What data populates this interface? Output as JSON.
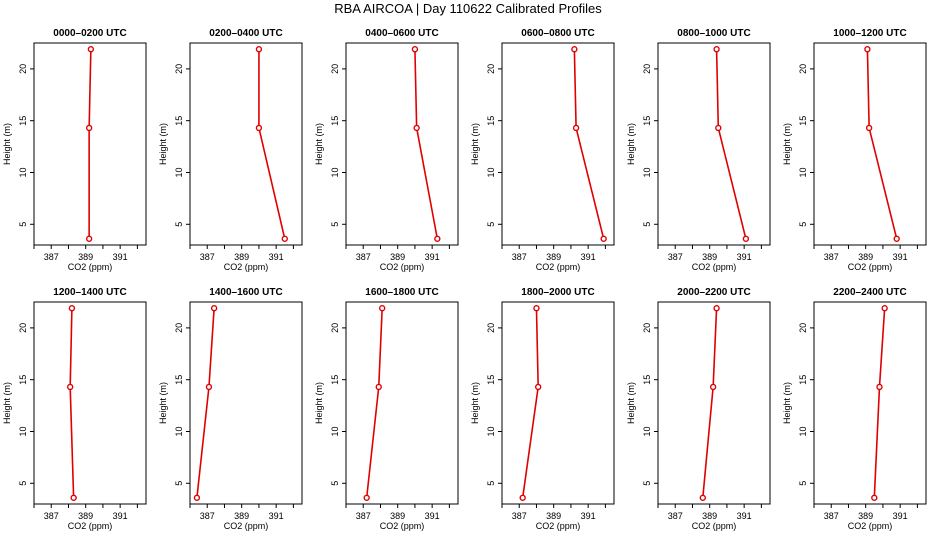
{
  "chart_data": {
    "type": "line",
    "title": "RBA AIRCOA |  Day 110622  Calibrated Profiles",
    "xlabel": "CO2 (ppm)",
    "ylabel": "Height (m)",
    "xlim": [
      386,
      392.5
    ],
    "ylim": [
      3,
      22.5
    ],
    "xticks": [
      387,
      389,
      391
    ],
    "yticks": [
      5,
      10,
      15,
      20
    ],
    "heights": [
      3.6,
      14.3,
      21.9
    ],
    "line_color": "#e00000",
    "panels": [
      {
        "title": "0000–0200 UTC",
        "co2": [
          389.2,
          389.2,
          389.3
        ]
      },
      {
        "title": "0200–0400 UTC",
        "co2": [
          391.5,
          390.0,
          390.0
        ]
      },
      {
        "title": "0400–0600 UTC",
        "co2": [
          391.3,
          390.1,
          390.0
        ]
      },
      {
        "title": "0600–0800 UTC",
        "co2": [
          391.9,
          390.3,
          390.2
        ]
      },
      {
        "title": "0800–1000 UTC",
        "co2": [
          391.1,
          389.5,
          389.4
        ]
      },
      {
        "title": "1000–1200 UTC",
        "co2": [
          390.8,
          389.2,
          389.1
        ]
      },
      {
        "title": "1200–1400 UTC",
        "co2": [
          388.3,
          388.1,
          388.2
        ]
      },
      {
        "title": "1400–1600 UTC",
        "co2": [
          386.4,
          387.1,
          387.4
        ]
      },
      {
        "title": "1600–1800 UTC",
        "co2": [
          387.2,
          387.9,
          388.1
        ]
      },
      {
        "title": "1800–2000 UTC",
        "co2": [
          387.2,
          388.1,
          388.0
        ]
      },
      {
        "title": "2000–2200 UTC",
        "co2": [
          388.6,
          389.2,
          389.4
        ]
      },
      {
        "title": "2200–2400 UTC",
        "co2": [
          389.5,
          389.8,
          390.1
        ]
      }
    ]
  }
}
